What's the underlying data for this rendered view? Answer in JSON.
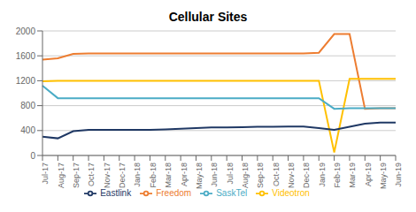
{
  "chart_data": {
    "type": "line",
    "title": "Cellular Sites",
    "categories": [
      "Jul-17",
      "Aug-17",
      "Sep-17",
      "Oct-17",
      "Nov-17",
      "Dec-17",
      "Jan-18",
      "Feb-18",
      "Mar-18",
      "Apr-18",
      "May-18",
      "Jun-18",
      "Jul-18",
      "Aug-18",
      "Sep-18",
      "Oct-18",
      "Nov-18",
      "Dec-18",
      "Jan-19",
      "Feb-19",
      "Mar-19",
      "Apr-19",
      "May-19",
      "Jun-19"
    ],
    "series": [
      {
        "name": "Freedom",
        "color": "#ED7D31",
        "values": [
          1540,
          1560,
          1630,
          1640,
          1640,
          1640,
          1640,
          1640,
          1640,
          1640,
          1640,
          1640,
          1640,
          1640,
          1640,
          1640,
          1640,
          1640,
          1650,
          1950,
          1950,
          750,
          760,
          760
        ]
      },
      {
        "name": "Videotron",
        "color": "#FFC000",
        "values": [
          1190,
          1200,
          1200,
          1200,
          1200,
          1200,
          1200,
          1200,
          1200,
          1200,
          1200,
          1200,
          1200,
          1200,
          1200,
          1200,
          1200,
          1200,
          1200,
          50,
          1230,
          1230,
          1230,
          1230
        ]
      },
      {
        "name": "SaskTel",
        "color": "#4BACC6",
        "values": [
          1120,
          920,
          920,
          920,
          920,
          920,
          920,
          920,
          920,
          920,
          920,
          920,
          920,
          920,
          920,
          920,
          920,
          920,
          920,
          750,
          760,
          760,
          760,
          760
        ]
      },
      {
        "name": "Eastlink",
        "color": "#1F3864",
        "values": [
          300,
          275,
          390,
          410,
          410,
          410,
          410,
          410,
          420,
          430,
          440,
          450,
          450,
          455,
          460,
          460,
          465,
          465,
          440,
          410,
          460,
          510,
          530,
          530
        ]
      }
    ],
    "ylim": [
      0,
      2000
    ],
    "yticks": [
      0,
      400,
      800,
      1200,
      1600,
      2000
    ],
    "grid": true,
    "legend": "bottom"
  }
}
